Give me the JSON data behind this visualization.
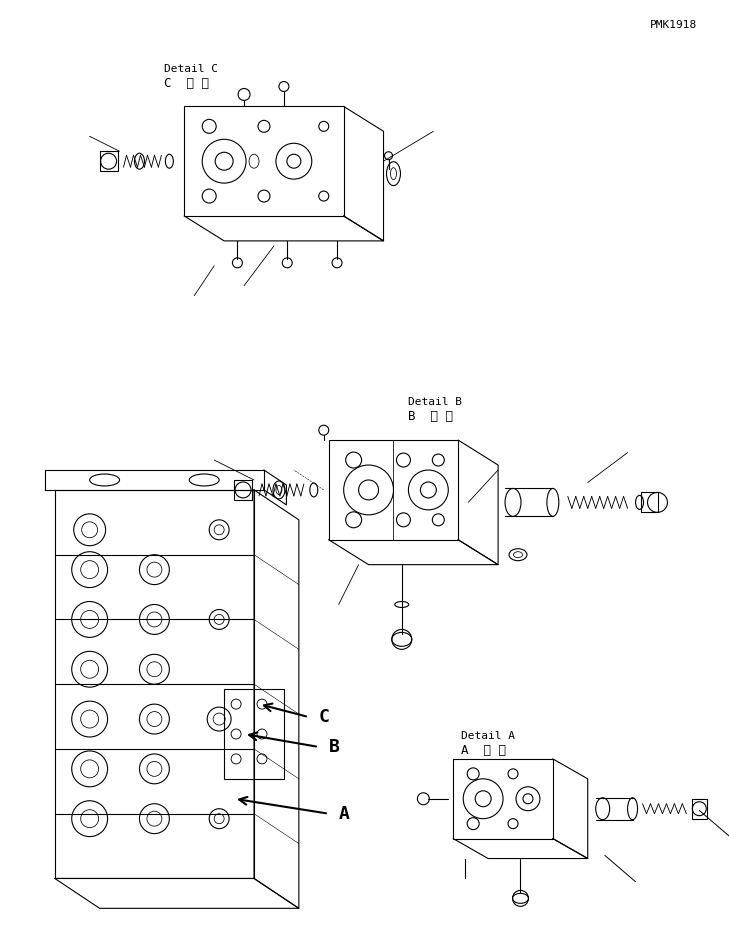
{
  "bg_color": "#ffffff",
  "line_color": "#000000",
  "fig_width": 7.29,
  "fig_height": 9.5,
  "dpi": 100,
  "label_A_jp": "A  詳 細",
  "label_A_en": "Detail A",
  "label_B_jp": "B  詳 細",
  "label_B_en": "Detail B",
  "label_C_jp": "C  詳 細",
  "label_C_en": "Detail C",
  "part_number": "PMK1918",
  "arrow_A_label": "A",
  "arrow_B_label": "B",
  "arrow_C_label": "C"
}
